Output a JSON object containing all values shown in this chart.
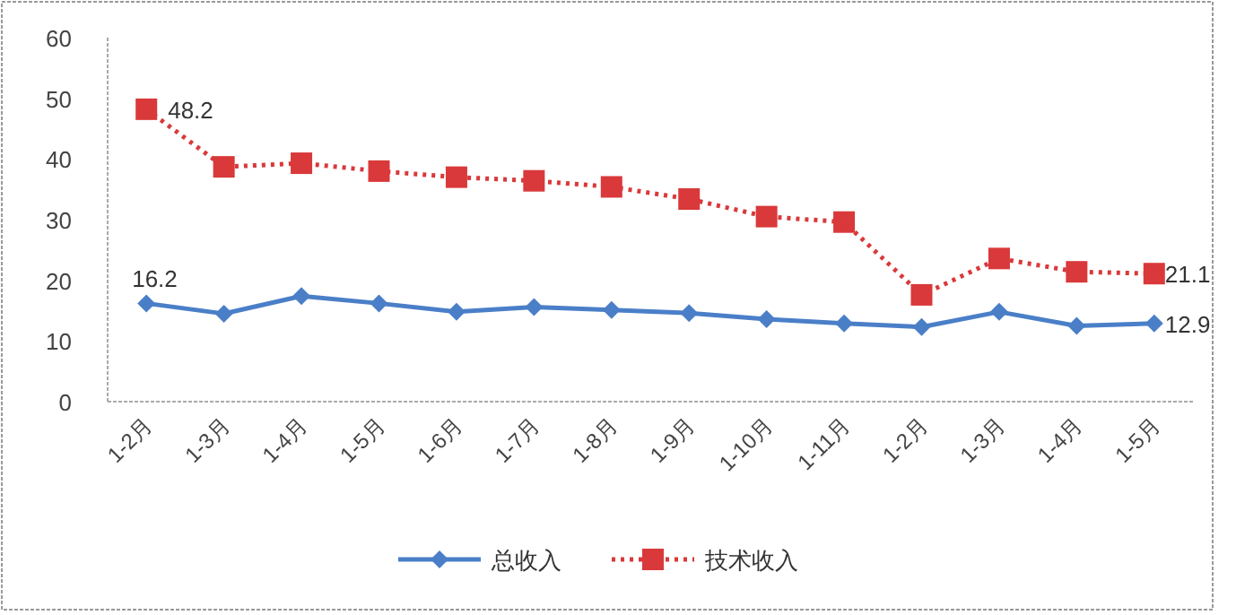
{
  "chart_data": {
    "type": "line",
    "categories": [
      "1-2月",
      "1-3月",
      "1-4月",
      "1-5月",
      "1-6月",
      "1-7月",
      "1-8月",
      "1-9月",
      "1-10月",
      "1-11月",
      "1-2月",
      "1-3月",
      "1-4月",
      "1-5月"
    ],
    "series": [
      {
        "name": "总收入",
        "color": "#4a7fc8",
        "marker": "diamond",
        "line_style": "solid",
        "values": [
          16.2,
          14.5,
          17.4,
          16.2,
          14.8,
          15.6,
          15.1,
          14.6,
          13.6,
          12.9,
          12.3,
          14.8,
          12.5,
          12.9
        ],
        "value_labels": [
          "16.2",
          null,
          null,
          null,
          null,
          null,
          null,
          null,
          null,
          null,
          null,
          null,
          null,
          "12.9"
        ]
      },
      {
        "name": "技术收入",
        "color": "#d9393a",
        "marker": "square",
        "line_style": "dotted",
        "values": [
          48.2,
          38.7,
          39.3,
          38.0,
          37.0,
          36.4,
          35.4,
          33.4,
          30.5,
          29.6,
          17.6,
          23.6,
          21.4,
          21.1
        ],
        "value_labels": [
          "48.2",
          null,
          null,
          null,
          null,
          null,
          null,
          null,
          null,
          null,
          null,
          null,
          null,
          "21.1"
        ]
      }
    ],
    "ylim": [
      0,
      60
    ],
    "yticks": [
      0,
      10,
      20,
      30,
      40,
      50,
      60
    ],
    "grid": false,
    "legend": "bottom"
  }
}
